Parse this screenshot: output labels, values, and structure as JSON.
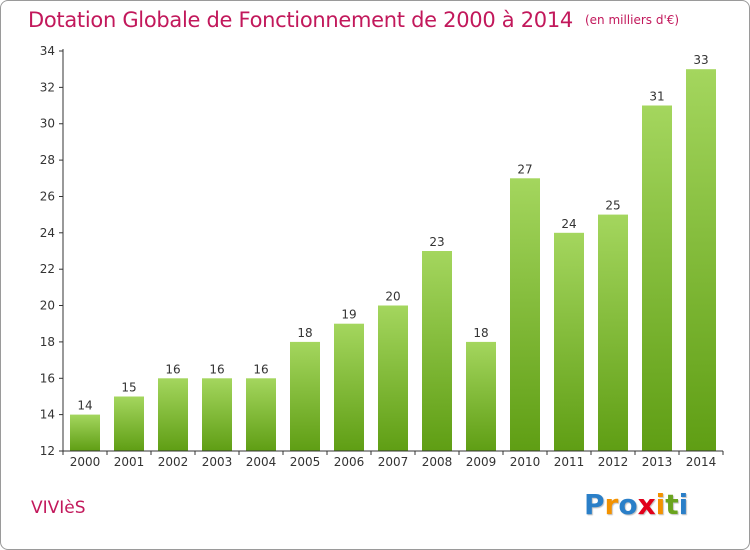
{
  "chart_data": {
    "type": "bar",
    "title": "Dotation Globale de Fonctionnement de 2000 à 2014",
    "subtitle": "(en milliers d'€)",
    "categories": [
      "2000",
      "2001",
      "2002",
      "2003",
      "2004",
      "2005",
      "2006",
      "2007",
      "2008",
      "2009",
      "2010",
      "2011",
      "2012",
      "2013",
      "2014"
    ],
    "values": [
      14,
      15,
      16,
      16,
      16,
      18,
      19,
      20,
      23,
      18,
      27,
      24,
      25,
      31,
      33
    ],
    "ylim": [
      12,
      34
    ],
    "yticks": [
      "12",
      "14",
      "16",
      "18",
      "20",
      "22",
      "24",
      "26",
      "28",
      "30",
      "32",
      "34"
    ],
    "xlabel": "",
    "ylabel": "",
    "grid": false,
    "legend": "none",
    "bar_color_top": "#a4d65e",
    "bar_color_bottom": "#5f9e14"
  },
  "place": "VIVIèS",
  "logo": {
    "letters": [
      "P",
      "r",
      "o",
      "x",
      "i",
      "t",
      "i"
    ],
    "colors": [
      "#2a7fc8",
      "#f39200",
      "#2a7fc8",
      "#e2001a",
      "#f39200",
      "#6aa41e",
      "#2a7fc8"
    ]
  },
  "colors": {
    "title": "#c2185b",
    "axis": "#333333"
  }
}
